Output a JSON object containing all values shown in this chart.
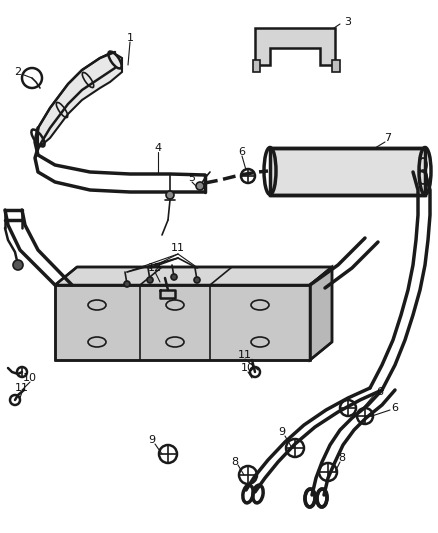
{
  "bg_color": "#ffffff",
  "line_color": "#1a1a1a",
  "figsize": [
    4.38,
    5.33
  ],
  "dpi": 100,
  "lw_pipe": 2.5,
  "lw_thin": 1.2,
  "lw_med": 1.8
}
